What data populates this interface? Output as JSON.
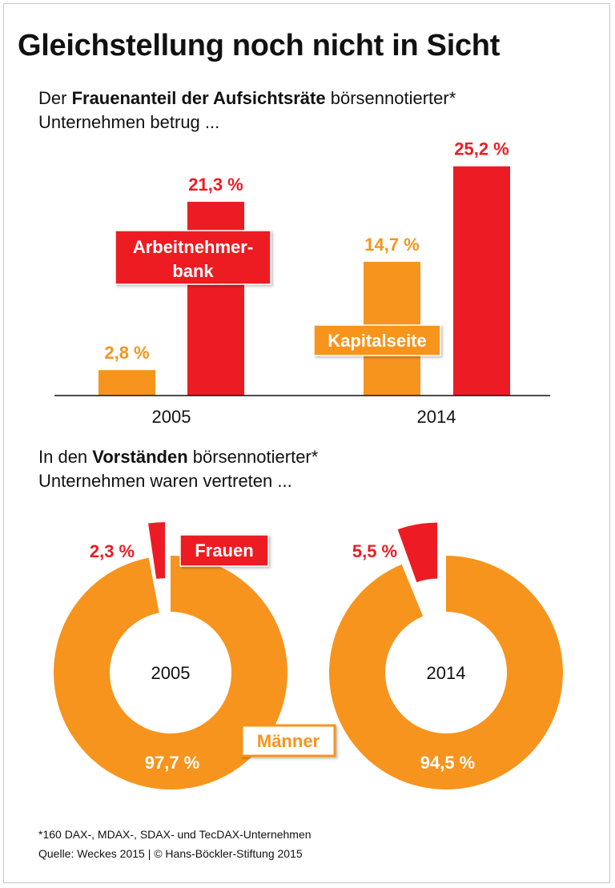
{
  "title": "Gleichstellung noch nicht in Sicht",
  "section1": {
    "line1_pre": "Der ",
    "line1_bold": "Frauenanteil der Aufsichtsräte",
    "line1_post": " börsennotierter*",
    "line2": "Unternehmen betrug ..."
  },
  "section2": {
    "line1_pre": "In den ",
    "line1_bold": "Vorständen",
    "line1_post": " börsennotierter*",
    "line2": "Unternehmen waren vertreten ..."
  },
  "colors": {
    "orange": "#F7941D",
    "red": "#ED1C24"
  },
  "chart_data": [
    {
      "type": "bar",
      "categories": [
        "2005",
        "2014"
      ],
      "series": [
        {
          "name": "Kapitalseite",
          "color": "#F7941D",
          "values": [
            2.8,
            14.7
          ],
          "labels": [
            "2,8 %",
            "14,7 %"
          ]
        },
        {
          "name": "Arbeitnehmerbank",
          "color": "#ED1C24",
          "values": [
            21.3,
            25.2
          ],
          "labels": [
            "21,3 %",
            "25,2 %"
          ]
        }
      ],
      "series_label_text": {
        "Kapitalseite": "Kapitalseite",
        "Arbeitnehmerbank_line1": "Arbeitnehmer-",
        "Arbeitnehmerbank_line2": "bank"
      },
      "unit": "%"
    },
    {
      "type": "pie",
      "donuts": [
        {
          "center_label": "2005",
          "slices": [
            {
              "name": "Frauen",
              "value": 2.3,
              "label": "2,3 %"
            },
            {
              "name": "Männer",
              "value": 97.7,
              "label": "97,7 %"
            }
          ]
        },
        {
          "center_label": "2014",
          "slices": [
            {
              "name": "Frauen",
              "value": 5.5,
              "label": "5,5 %"
            },
            {
              "name": "Männer",
              "value": 94.5,
              "label": "94,5 %"
            }
          ]
        }
      ],
      "legend_text": {
        "women": "Frauen",
        "men": "Männer"
      }
    }
  ],
  "footer": {
    "note": "*160 DAX-, MDAX-, SDAX- und TecDAX-Unternehmen",
    "source": "Quelle: Weckes 2015 | © Hans-Böckler-Stiftung 2015"
  }
}
